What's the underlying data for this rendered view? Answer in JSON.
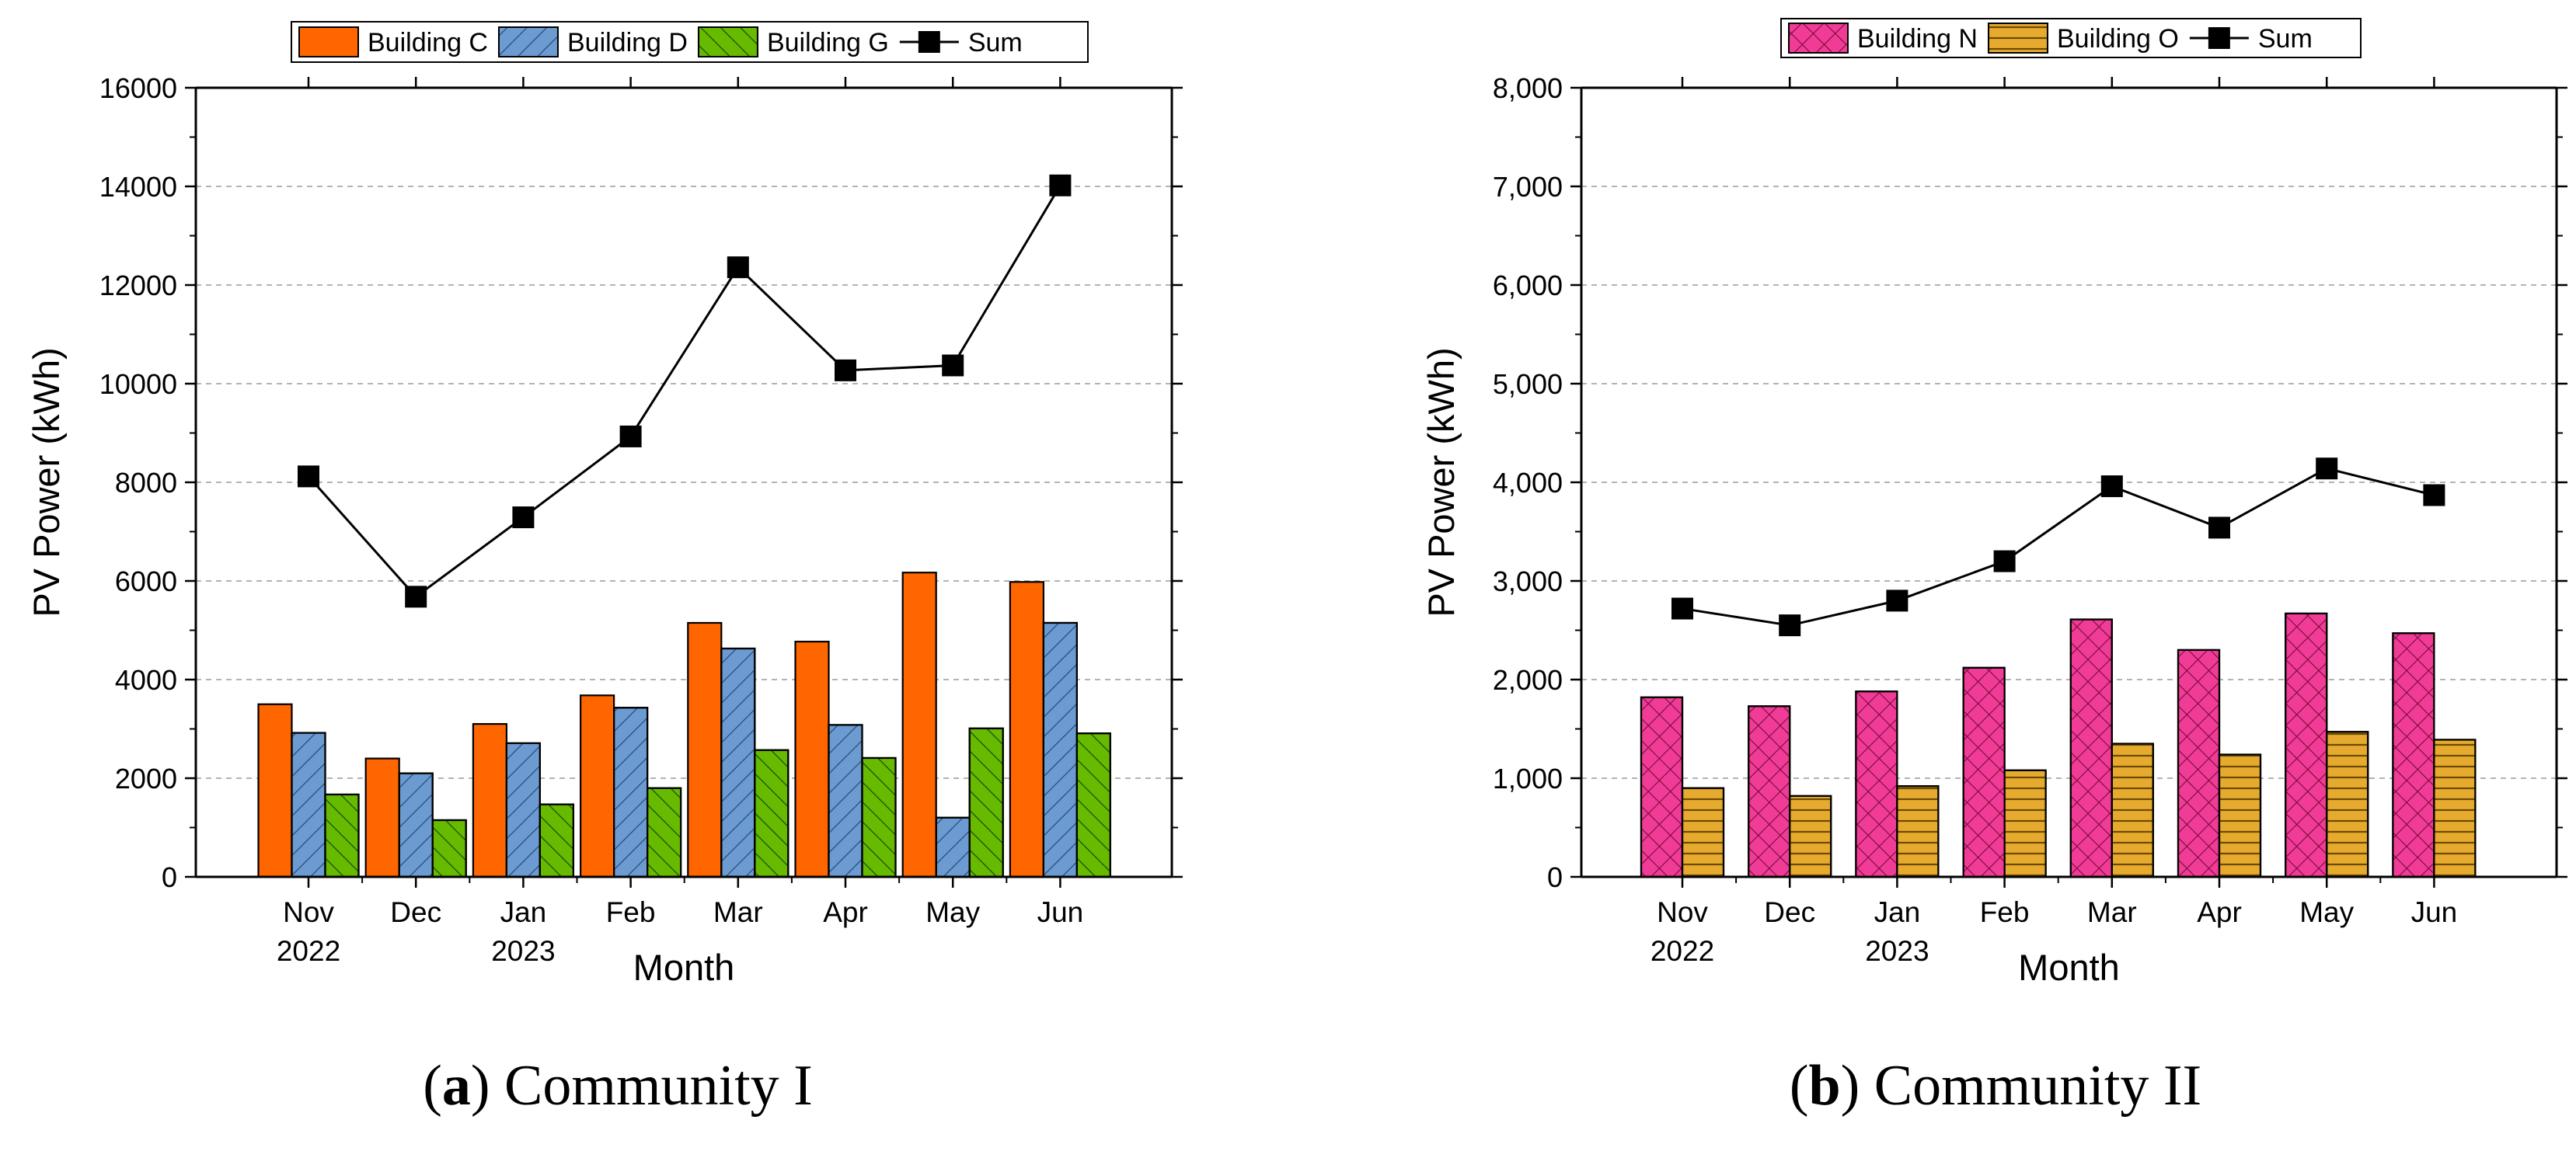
{
  "chart_data": [
    {
      "panel_label": "a",
      "caption": "Community I",
      "type": "bar",
      "xlabel": "Month",
      "ylabel": "PV Power (kWh)",
      "ylim": [
        0,
        16000
      ],
      "y_tick_step": 2000,
      "y_tick_format": "plain",
      "grid": true,
      "legend_position": "top",
      "categories": [
        "Nov\n2022",
        "Dec",
        "Jan\n2023",
        "Feb",
        "Mar",
        "Apr",
        "May",
        "Jun"
      ],
      "series": [
        {
          "name": "Building C",
          "kind": "bar",
          "color": "#ff6600",
          "pattern": "none",
          "values": [
            3500,
            2400,
            3100,
            3680,
            5150,
            4770,
            6170,
            5980
          ]
        },
        {
          "name": "Building D",
          "kind": "bar",
          "color": "#6b9bd1",
          "pattern": "diag",
          "values": [
            2920,
            2100,
            2710,
            3430,
            4630,
            3080,
            1200,
            5150
          ]
        },
        {
          "name": "Building G",
          "kind": "bar",
          "color": "#66bb00",
          "pattern": "diag-rev",
          "values": [
            1670,
            1150,
            1470,
            1800,
            2570,
            2410,
            3010,
            2910
          ]
        },
        {
          "name": "Sum",
          "kind": "line",
          "color": "#000000",
          "values": [
            8120,
            5680,
            7290,
            8930,
            12360,
            10270,
            10370,
            14020
          ]
        }
      ]
    },
    {
      "panel_label": "b",
      "caption": "Community II",
      "type": "bar",
      "xlabel": "Month",
      "ylabel": "PV Power (kWh)",
      "ylim": [
        0,
        8000
      ],
      "y_tick_step": 1000,
      "y_tick_format": "comma",
      "grid": true,
      "legend_position": "top",
      "categories": [
        "Nov\n2022",
        "Dec",
        "Jan\n2023",
        "Feb",
        "Mar",
        "Apr",
        "May",
        "Jun"
      ],
      "series": [
        {
          "name": "Building N",
          "kind": "bar",
          "color": "#f03c96",
          "pattern": "cross",
          "values": [
            1820,
            1730,
            1880,
            2120,
            2610,
            2300,
            2670,
            2470
          ]
        },
        {
          "name": "Building O",
          "kind": "bar",
          "color": "#e6aa2e",
          "pattern": "horiz",
          "values": [
            900,
            820,
            920,
            1080,
            1350,
            1240,
            1470,
            1390
          ]
        },
        {
          "name": "Sum",
          "kind": "line",
          "color": "#000000",
          "values": [
            2720,
            2550,
            2800,
            3200,
            3960,
            3540,
            4140,
            3870
          ]
        }
      ]
    }
  ]
}
